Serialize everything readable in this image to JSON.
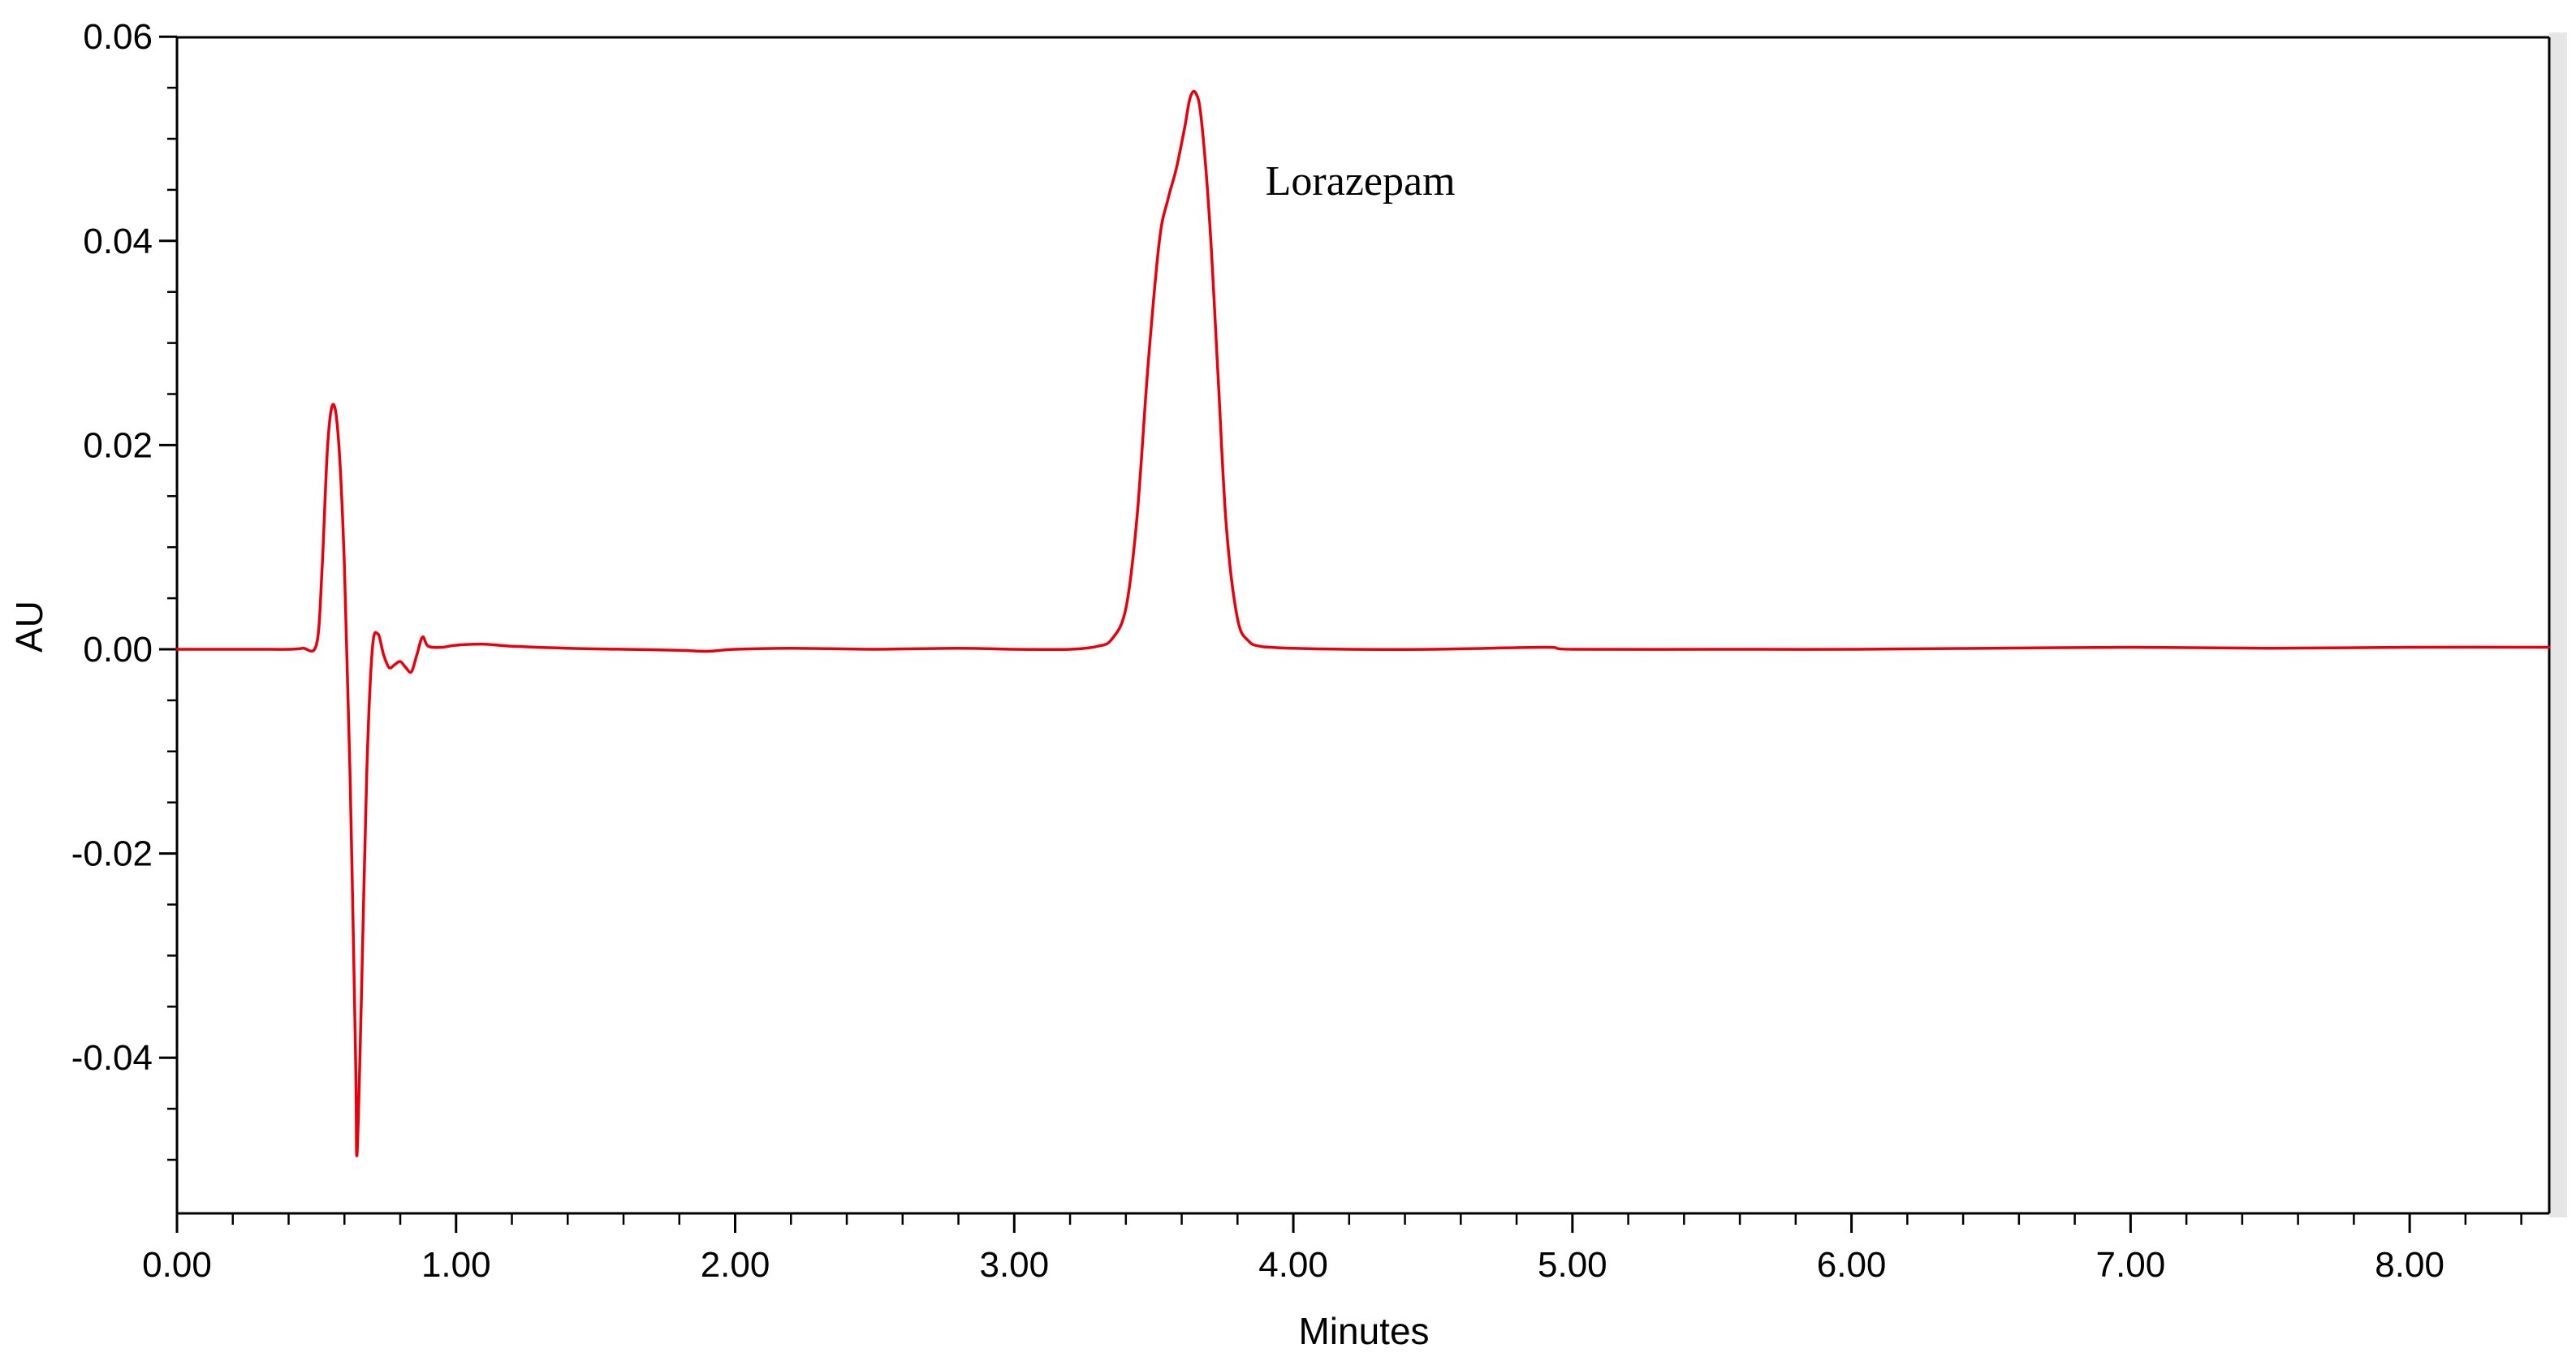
{
  "chart_data": {
    "type": "line",
    "title": "",
    "xlabel": "Minutes",
    "ylabel": "AU",
    "xlim": [
      0,
      8.5
    ],
    "ylim": [
      -0.055,
      0.06
    ],
    "grid": false,
    "x_ticks": [
      {
        "value": 0,
        "label": "0.00"
      },
      {
        "value": 1,
        "label": "1.00"
      },
      {
        "value": 2,
        "label": "2.00"
      },
      {
        "value": 3,
        "label": "3.00"
      },
      {
        "value": 4,
        "label": "4.00"
      },
      {
        "value": 5,
        "label": "5.00"
      },
      {
        "value": 6,
        "label": "6.00"
      },
      {
        "value": 7,
        "label": "7.00"
      },
      {
        "value": 8,
        "label": "8.00"
      }
    ],
    "y_ticks": [
      {
        "value": 0.06,
        "label": "0.06"
      },
      {
        "value": 0.04,
        "label": "0.04"
      },
      {
        "value": 0.02,
        "label": "0.02"
      },
      {
        "value": 0.0,
        "label": "0.00"
      },
      {
        "value": -0.02,
        "label": "-0.02"
      },
      {
        "value": -0.04,
        "label": "-0.04"
      }
    ],
    "annotations": [
      {
        "text": "Lorazepam",
        "x": 3.9,
        "y": 0.0445
      }
    ],
    "series": [
      {
        "color": "#e8000b",
        "x": [
          0.0,
          0.1,
          0.2,
          0.3,
          0.4,
          0.45,
          0.5,
          0.52,
          0.54,
          0.56,
          0.58,
          0.6,
          0.62,
          0.64,
          0.645,
          0.66,
          0.68,
          0.7,
          0.72,
          0.74,
          0.76,
          0.78,
          0.8,
          0.82,
          0.84,
          0.86,
          0.88,
          0.9,
          0.95,
          1.0,
          1.1,
          1.2,
          1.4,
          1.6,
          1.8,
          1.9,
          2.0,
          2.2,
          2.5,
          2.8,
          3.0,
          3.2,
          3.3,
          3.35,
          3.4,
          3.44,
          3.48,
          3.52,
          3.55,
          3.58,
          3.61,
          3.63,
          3.65,
          3.67,
          3.7,
          3.73,
          3.76,
          3.8,
          3.84,
          3.88,
          3.92,
          4.0,
          4.2,
          4.5,
          4.9,
          5.0,
          5.5,
          6.0,
          6.5,
          7.0,
          7.5,
          8.0,
          8.5
        ],
        "y": [
          0.0,
          0.0,
          0.0,
          0.0,
          0.0,
          0.0001,
          0.0005,
          0.008,
          0.02,
          0.024,
          0.02,
          0.008,
          -0.012,
          -0.04,
          -0.0495,
          -0.035,
          -0.012,
          0.0,
          0.0015,
          -0.0005,
          -0.0018,
          -0.0015,
          -0.0012,
          -0.0018,
          -0.0022,
          -0.0005,
          0.0012,
          0.0003,
          0.0002,
          0.0004,
          0.0005,
          0.0003,
          0.0001,
          0.0,
          -0.0001,
          -0.0002,
          0.0,
          0.0001,
          0.0,
          0.0001,
          0.0,
          0.0,
          0.0003,
          0.001,
          0.004,
          0.013,
          0.028,
          0.04,
          0.044,
          0.047,
          0.051,
          0.054,
          0.0545,
          0.052,
          0.042,
          0.027,
          0.012,
          0.003,
          0.0008,
          0.0003,
          0.0002,
          0.0001,
          0.0,
          0.0,
          0.0002,
          0.0,
          0.0,
          0.0,
          0.0001,
          0.0002,
          0.0001,
          0.0002,
          0.0002
        ]
      }
    ]
  }
}
